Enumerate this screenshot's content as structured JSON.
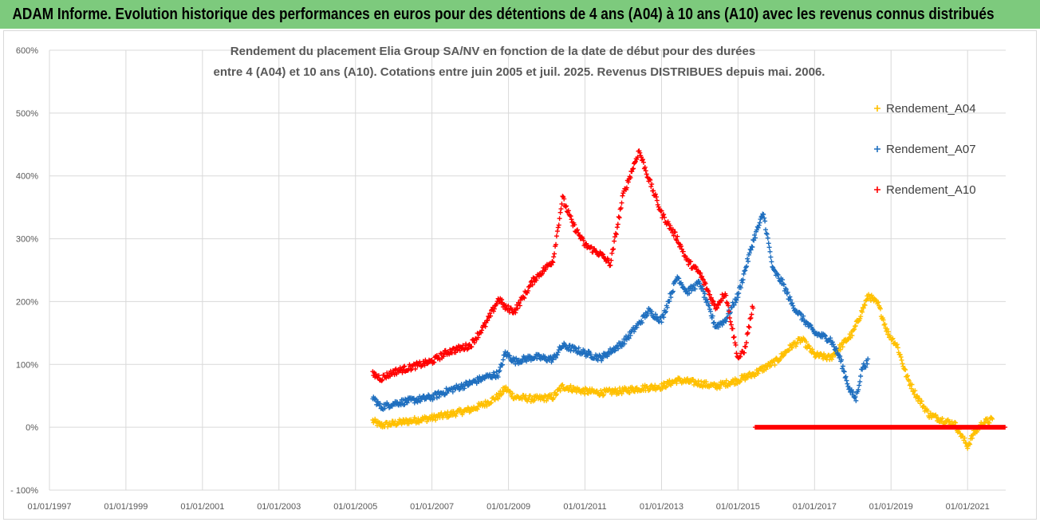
{
  "header": {
    "title": "ADAM Informe. Evolution historique des performances en euros pour des détentions de 4 ans (A04) à 10 ans (A10) avec les revenus connus distribués"
  },
  "chart_data": {
    "type": "scatter",
    "title_line1": "Rendement du placement Elia Group SA/NV en fonction de la date de début pour des durées",
    "title_line2": "entre 4 (A04) et 10 ans (A10). Cotations entre juin 2005 et juil. 2025. Revenus DISTRIBUES depuis mai. 2006.",
    "xlabel": "",
    "ylabel": "",
    "x_range": [
      "1997-01-01",
      "2021-12-31"
    ],
    "ylim": [
      -100,
      600
    ],
    "y_ticks": [
      -100,
      0,
      100,
      200,
      300,
      400,
      500,
      600
    ],
    "y_tick_labels": [
      "- 100%",
      "0%",
      "100%",
      "200%",
      "300%",
      "400%",
      "500%",
      "600%"
    ],
    "x_ticks": [
      "1997-01-01",
      "1999-01-01",
      "2001-01-01",
      "2003-01-01",
      "2005-01-01",
      "2007-01-01",
      "2009-01-01",
      "2011-01-01",
      "2013-01-01",
      "2015-01-01",
      "2017-01-01",
      "2019-01-01",
      "2021-01-01"
    ],
    "x_tick_labels": [
      "01/01/1997",
      "01/01/1999",
      "01/01/2001",
      "01/01/2003",
      "01/01/2005",
      "01/01/2007",
      "01/01/2009",
      "01/01/2011",
      "01/01/2013",
      "01/01/2015",
      "01/01/2017",
      "01/01/2019",
      "01/01/2021"
    ],
    "grid": true,
    "marker": "+",
    "legend_position": "right",
    "series": [
      {
        "name": "Rendement_A04",
        "color": "#ffc000",
        "points": [
          [
            "2005-06-15",
            10
          ],
          [
            "2005-09-01",
            3
          ],
          [
            "2006-01-01",
            6
          ],
          [
            "2006-06-01",
            10
          ],
          [
            "2007-01-01",
            15
          ],
          [
            "2007-06-01",
            20
          ],
          [
            "2008-01-01",
            28
          ],
          [
            "2008-06-01",
            38
          ],
          [
            "2008-10-01",
            50
          ],
          [
            "2008-12-01",
            62
          ],
          [
            "2009-03-01",
            48
          ],
          [
            "2009-09-01",
            45
          ],
          [
            "2010-03-01",
            48
          ],
          [
            "2010-06-01",
            65
          ],
          [
            "2010-12-01",
            58
          ],
          [
            "2011-06-01",
            55
          ],
          [
            "2012-01-01",
            58
          ],
          [
            "2012-06-01",
            62
          ],
          [
            "2013-01-01",
            65
          ],
          [
            "2013-06-01",
            75
          ],
          [
            "2014-01-01",
            70
          ],
          [
            "2014-06-01",
            65
          ],
          [
            "2015-01-01",
            75
          ],
          [
            "2015-06-01",
            85
          ],
          [
            "2016-01-01",
            105
          ],
          [
            "2016-06-01",
            130
          ],
          [
            "2016-09-01",
            140
          ],
          [
            "2017-01-01",
            115
          ],
          [
            "2017-06-01",
            110
          ],
          [
            "2018-01-01",
            150
          ],
          [
            "2018-06-01",
            210
          ],
          [
            "2018-09-01",
            195
          ],
          [
            "2018-12-01",
            150
          ],
          [
            "2019-03-01",
            130
          ],
          [
            "2019-06-01",
            80
          ],
          [
            "2019-09-01",
            50
          ],
          [
            "2020-01-01",
            20
          ],
          [
            "2020-06-01",
            10
          ],
          [
            "2020-09-01",
            5
          ],
          [
            "2021-01-01",
            -30
          ],
          [
            "2021-03-01",
            -10
          ],
          [
            "2021-06-01",
            8
          ],
          [
            "2021-09-01",
            12
          ]
        ]
      },
      {
        "name": "Rendement_A07",
        "color": "#1f6fbf",
        "points": [
          [
            "2005-06-15",
            48
          ],
          [
            "2005-09-01",
            32
          ],
          [
            "2006-01-01",
            38
          ],
          [
            "2006-06-01",
            42
          ],
          [
            "2007-01-01",
            48
          ],
          [
            "2007-06-01",
            58
          ],
          [
            "2008-01-01",
            70
          ],
          [
            "2008-06-01",
            80
          ],
          [
            "2008-10-01",
            85
          ],
          [
            "2008-12-01",
            118
          ],
          [
            "2009-03-01",
            105
          ],
          [
            "2009-09-01",
            112
          ],
          [
            "2010-03-01",
            108
          ],
          [
            "2010-06-01",
            130
          ],
          [
            "2010-12-01",
            120
          ],
          [
            "2011-06-01",
            110
          ],
          [
            "2012-01-01",
            135
          ],
          [
            "2012-06-01",
            165
          ],
          [
            "2012-09-01",
            185
          ],
          [
            "2013-01-01",
            170
          ],
          [
            "2013-06-01",
            240
          ],
          [
            "2013-09-01",
            215
          ],
          [
            "2014-01-01",
            230
          ],
          [
            "2014-06-01",
            160
          ],
          [
            "2014-09-01",
            170
          ],
          [
            "2015-01-01",
            210
          ],
          [
            "2015-06-01",
            300
          ],
          [
            "2015-09-01",
            340
          ],
          [
            "2015-12-01",
            250
          ],
          [
            "2016-03-01",
            230
          ],
          [
            "2016-06-01",
            195
          ],
          [
            "2016-09-01",
            175
          ],
          [
            "2017-01-01",
            150
          ],
          [
            "2017-06-01",
            140
          ],
          [
            "2017-09-01",
            110
          ],
          [
            "2017-12-01",
            60
          ],
          [
            "2018-02-01",
            45
          ],
          [
            "2018-04-01",
            95
          ],
          [
            "2018-06-01",
            105
          ]
        ]
      },
      {
        "name": "Rendement_A10",
        "color": "#ff0000",
        "points": [
          [
            "2005-06-15",
            85
          ],
          [
            "2005-09-01",
            78
          ],
          [
            "2006-01-01",
            88
          ],
          [
            "2006-06-01",
            95
          ],
          [
            "2007-01-01",
            105
          ],
          [
            "2007-06-01",
            120
          ],
          [
            "2008-01-01",
            130
          ],
          [
            "2008-06-01",
            165
          ],
          [
            "2008-10-01",
            205
          ],
          [
            "2008-12-01",
            190
          ],
          [
            "2009-03-01",
            185
          ],
          [
            "2009-09-01",
            235
          ],
          [
            "2010-03-01",
            265
          ],
          [
            "2010-06-01",
            365
          ],
          [
            "2010-09-01",
            325
          ],
          [
            "2011-01-01",
            290
          ],
          [
            "2011-06-01",
            275
          ],
          [
            "2011-09-01",
            260
          ],
          [
            "2012-01-01",
            370
          ],
          [
            "2012-06-01",
            440
          ],
          [
            "2012-09-01",
            395
          ],
          [
            "2013-01-01",
            340
          ],
          [
            "2013-06-01",
            300
          ],
          [
            "2013-09-01",
            265
          ],
          [
            "2014-01-01",
            245
          ],
          [
            "2014-06-01",
            190
          ],
          [
            "2014-09-01",
            215
          ],
          [
            "2015-01-01",
            110
          ],
          [
            "2015-03-01",
            120
          ],
          [
            "2015-06-01",
            200
          ]
        ]
      },
      {
        "name": "Rendement_A10 (0%)",
        "color": "#ff0000",
        "points": [
          [
            "2015-06-15",
            0
          ],
          [
            "2021-12-31",
            0
          ]
        ]
      }
    ]
  }
}
